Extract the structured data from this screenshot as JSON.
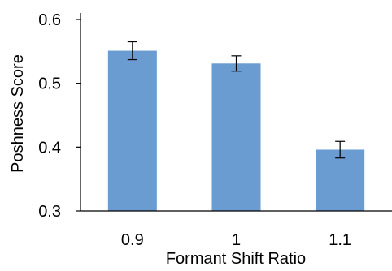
{
  "chart_data": {
    "type": "bar",
    "title": "",
    "xlabel": "Formant Shift Ratio",
    "ylabel": "Poshness Score",
    "categories": [
      "0.9",
      "1",
      "1.1"
    ],
    "values": [
      0.551,
      0.531,
      0.396
    ],
    "errors": [
      0.014,
      0.012,
      0.013
    ],
    "ylim": [
      0.3,
      0.6
    ],
    "yticks": [
      "0.3",
      "0.4",
      "0.5",
      "0.6"
    ],
    "ytick_values": [
      0.3,
      0.4,
      0.5,
      0.6
    ],
    "grid": false,
    "legend": "none",
    "colors": {
      "bar": "#6a9bd1",
      "axis": "#000000",
      "text": "#000000"
    }
  }
}
